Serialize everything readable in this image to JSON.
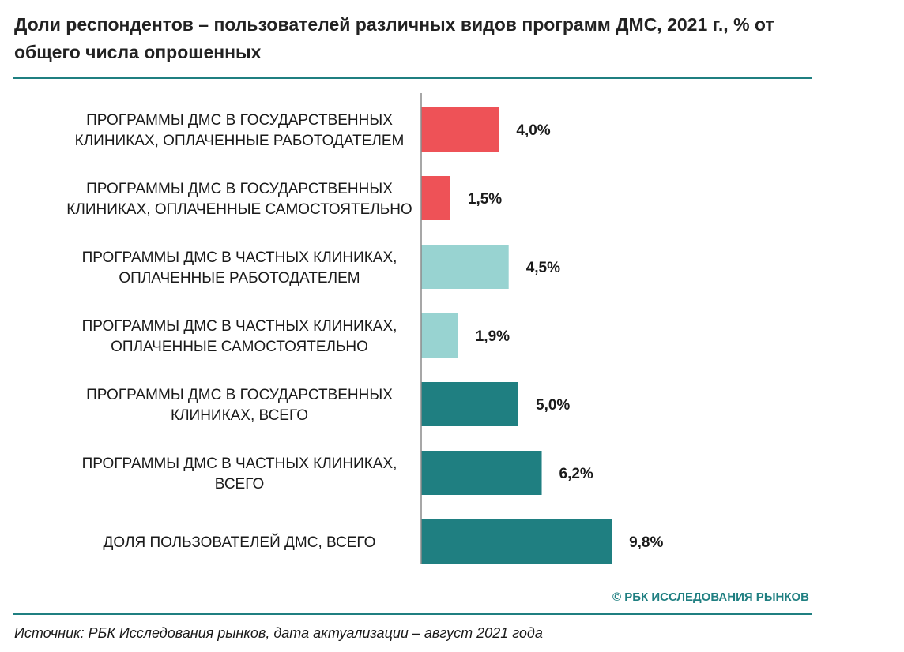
{
  "header": {
    "title": "Доли респондентов – пользователей различных видов программ ДМС, 2021 г., % от общего числа опрошенных"
  },
  "footer": {
    "copyright": "© РБК ИССЛЕДОВАНИЯ РЫНКОВ",
    "source": "Источник: РБК Исследования рынков, дата актуализации – август 2021 года"
  },
  "colors": {
    "accent": "#1f7f81",
    "state": "#ee5257",
    "private": "#98d3d1",
    "total": "#1f7f81"
  },
  "chart_data": {
    "type": "bar",
    "orientation": "horizontal",
    "title": "Доли респондентов – пользователей различных видов программ ДМС, 2021 г., % от общего числа опрошенных",
    "xlabel": "",
    "ylabel": "",
    "grid": false,
    "legend": "none",
    "xlim": [
      0,
      10
    ],
    "categories": [
      [
        "ПРОГРАММЫ ДМС В ГОСУДАРСТВЕННЫХ",
        "КЛИНИКАХ, ОПЛАЧЕННЫЕ РАБОТОДАТЕЛЕМ"
      ],
      [
        "ПРОГРАММЫ ДМС В ГОСУДАРСТВЕННЫХ",
        "КЛИНИКАХ, ОПЛАЧЕННЫЕ САМОСТОЯТЕЛЬНО"
      ],
      [
        "ПРОГРАММЫ ДМС В ЧАСТНЫХ КЛИНИКАХ,",
        "ОПЛАЧЕННЫЕ РАБОТОДАТЕЛЕМ"
      ],
      [
        "ПРОГРАММЫ ДМС В ЧАСТНЫХ КЛИНИКАХ,",
        "ОПЛАЧЕННЫЕ САМОСТОЯТЕЛЬНО"
      ],
      [
        "ПРОГРАММЫ ДМС В ГОСУДАРСТВЕННЫХ",
        "КЛИНИКАХ, ВСЕГО"
      ],
      [
        "ПРОГРАММЫ ДМС В ЧАСТНЫХ КЛИНИКАХ,",
        "ВСЕГО"
      ],
      [
        "ДОЛЯ ПОЛЬЗОВАТЕЛЕЙ ДМС, ВСЕГО"
      ]
    ],
    "values": [
      4.0,
      1.5,
      4.5,
      1.9,
      5.0,
      6.2,
      9.8
    ],
    "value_labels": [
      "4,0%",
      "1,5%",
      "4,5%",
      "1,9%",
      "5,0%",
      "6,2%",
      "9,8%"
    ],
    "bar_colors": [
      "#ee5257",
      "#ee5257",
      "#98d3d1",
      "#98d3d1",
      "#1f7f81",
      "#1f7f81",
      "#1f7f81"
    ]
  }
}
